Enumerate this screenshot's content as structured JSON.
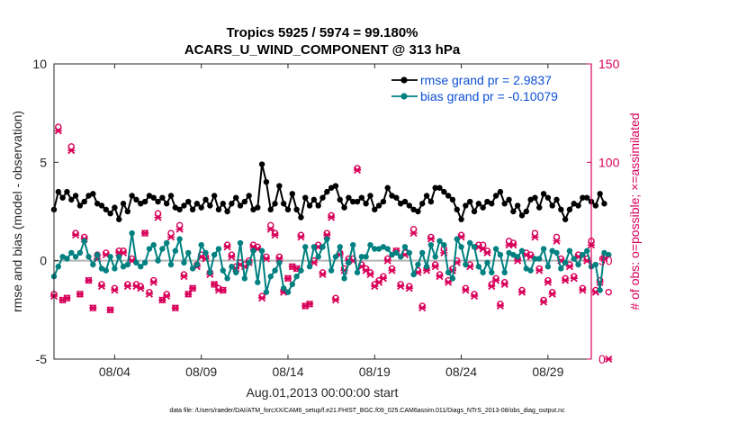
{
  "chart_data": {
    "type": "line",
    "title_line1": "Tropics 5925 / 5974 = 99.180%",
    "title_line2": "ACARS_U_WIND_COMPONENT @ 313 hPa",
    "ylabel_left": "rmse and bias (model - observation)",
    "ylabel_right": "# of obs: o=possible; ×=assimilated",
    "xlabel": "Aug.01,2013 00:00:00 start",
    "footnote": "data file: /Users/raeder/DAI/ATM_forcXX/CAM6_setup/f.e21.FHIST_BGC.f09_025.CAM6assim.011/Diags_NTrS_2013-08/obs_diag_output.nc",
    "ylim_left": [
      -5,
      10
    ],
    "ylim_right": [
      0,
      150
    ],
    "xlim": [
      0.5,
      31.5
    ],
    "yticks_left": [
      "-5",
      "0",
      "5",
      "10"
    ],
    "yticks_right": [
      "0",
      "50",
      "100",
      "150"
    ],
    "xticks": [
      {
        "day": 4,
        "label": "08/04"
      },
      {
        "day": 9,
        "label": "08/09"
      },
      {
        "day": 14,
        "label": "08/14"
      },
      {
        "day": 19,
        "label": "08/19"
      },
      {
        "day": 24,
        "label": "08/24"
      },
      {
        "day": 29,
        "label": "08/29"
      }
    ],
    "grid": false,
    "legend_position": "top-right",
    "colors": {
      "rmse": "#000000",
      "bias": "#008080",
      "obs": "#d8005a",
      "zero_line": "#b3b3b3",
      "right_axis": "#d8005a",
      "legend_text": "#0b4fd6"
    },
    "series": [
      {
        "name": "rmse grand pr = 2.9837",
        "key": "rmse",
        "x_start": 0.5,
        "x_step": 0.25,
        "values": [
          2.6,
          3.5,
          3.2,
          3.5,
          3.1,
          3.3,
          2.8,
          3.0,
          3.3,
          3.4,
          2.9,
          2.8,
          2.6,
          2.4,
          2.7,
          2.1,
          2.9,
          2.5,
          3.3,
          3.1,
          2.9,
          3.0,
          3.3,
          3.2,
          3.0,
          3.2,
          2.9,
          3.3,
          2.7,
          2.6,
          2.8,
          3.0,
          2.6,
          2.9,
          2.7,
          3.1,
          2.8,
          3.3,
          2.6,
          2.9,
          2.5,
          2.9,
          3.2,
          2.8,
          3.0,
          3.3,
          2.6,
          2.7,
          4.9,
          4.0,
          2.6,
          2.9,
          3.8,
          2.9,
          2.6,
          3.4,
          2.6,
          2.2,
          3.2,
          2.8,
          3.1,
          2.8,
          3.2,
          3.5,
          3.7,
          3.8,
          3.1,
          2.7,
          3.2,
          3.0,
          3.0,
          3.2,
          2.9,
          3.3,
          2.6,
          2.8,
          3.0,
          3.7,
          3.3,
          3.2,
          2.9,
          3.0,
          2.8,
          2.6,
          2.5,
          2.9,
          3.3,
          3.0,
          3.7,
          3.7,
          3.5,
          3.3,
          3.1,
          2.6,
          2.1,
          2.8,
          3.0,
          2.5,
          2.9,
          2.7,
          3.0,
          2.9,
          3.3,
          3.5,
          2.9,
          3.1,
          2.5,
          2.8,
          2.3,
          2.5,
          3.1,
          3.2,
          2.7,
          3.4,
          3.2,
          2.8,
          3.1,
          2.6,
          2.1,
          2.6,
          2.9,
          2.8,
          3.2,
          3.2,
          3.0,
          2.8,
          3.4,
          2.9
        ]
      },
      {
        "name": "bias grand pr = -0.10079",
        "key": "bias",
        "x_start": 0.5,
        "x_step": 0.25,
        "values": [
          -0.8,
          -0.3,
          0.2,
          0.1,
          0.4,
          0.2,
          0.4,
          1.0,
          0.2,
          -0.2,
          0.3,
          -0.4,
          -0.5,
          0.2,
          -0.4,
          0.2,
          -0.3,
          -0.2,
          1.4,
          -0.1,
          -0.3,
          -0.1,
          0.6,
          0.8,
          0.0,
          0.6,
          0.9,
          -0.2,
          0.5,
          1.1,
          -0.1,
          0.4,
          -0.4,
          -0.2,
          0.8,
          0.4,
          -0.6,
          0.3,
          0.6,
          -0.5,
          -0.9,
          -0.3,
          -0.6,
          0.9,
          -0.9,
          -0.1,
          0.5,
          -1.1,
          0.5,
          -1.6,
          -0.8,
          -0.5,
          -0.1,
          -1.4,
          -1.6,
          -1.2,
          -0.8,
          -0.5,
          0.7,
          -0.3,
          0.7,
          0.2,
          0.7,
          1.1,
          -0.5,
          0.2,
          0.7,
          -0.9,
          -0.1,
          0.8,
          -0.6,
          0.2,
          0.2,
          0.8,
          0.6,
          0.6,
          0.7,
          0.6,
          0.3,
          0.4,
          0.2,
          0.7,
          0.4,
          -0.7,
          -0.2,
          0.4,
          -0.3,
          0.8,
          0.2,
          1.0,
          0.8,
          -0.6,
          -0.9,
          1.1,
          0.7,
          -0.2,
          0.9,
          0.7,
          -0.3,
          -0.6,
          -0.1,
          -0.6,
          0.6,
          0.3,
          -0.6,
          0.4,
          0.3,
          0.2,
          0.5,
          -0.4,
          -0.5,
          0.1,
          0.1,
          0.6,
          -0.3,
          0.5,
          0.4,
          -0.4,
          -0.1,
          0.5,
          0.1,
          -0.2,
          0.3,
          0.5,
          -0.3,
          -0.2,
          -1.5,
          0.4,
          0.3
        ]
      },
      {
        "name": "possible obs",
        "key": "possible",
        "x_start": 0.5,
        "x_step": 0.25,
        "values": [
          33,
          118,
          30,
          31,
          108,
          64,
          33,
          62,
          40,
          26,
          53,
          38,
          54,
          25,
          36,
          55,
          55,
          38,
          51,
          38,
          37,
          64,
          34,
          40,
          74,
          30,
          33,
          64,
          26,
          68,
          43,
          33,
          36,
          48,
          53,
          52,
          44,
          38,
          36,
          35,
          58,
          53,
          47,
          49,
          48,
          50,
          58,
          57,
          32,
          52,
          68,
          64,
          52,
          35,
          41,
          47,
          46,
          63,
          27,
          28,
          50,
          58,
          44,
          64,
          73,
          31,
          54,
          46,
          51,
          51,
          97,
          48,
          46,
          44,
          38,
          40,
          42,
          51,
          46,
          55,
          38,
          54,
          37,
          66,
          45,
          27,
          46,
          62,
          48,
          43,
          56,
          40,
          46,
          50,
          63,
          36,
          48,
          33,
          58,
          58,
          55,
          38,
          41,
          28,
          39,
          60,
          59,
          51,
          35,
          54,
          53,
          64,
          46,
          30,
          40,
          34,
          62,
          51,
          41,
          48,
          42,
          53,
          36,
          51,
          60,
          35,
          40,
          52,
          34
        ]
      },
      {
        "name": "assimilated obs",
        "key": "assimilated",
        "x_start": 0.5,
        "x_step": 0.25,
        "values": [
          32,
          116,
          30,
          31,
          106,
          63,
          33,
          61,
          40,
          26,
          51,
          37,
          53,
          25,
          35,
          54,
          54,
          37,
          50,
          37,
          36,
          64,
          33,
          39,
          72,
          30,
          32,
          62,
          26,
          66,
          42,
          33,
          36,
          47,
          52,
          51,
          43,
          38,
          35,
          35,
          57,
          52,
          46,
          48,
          47,
          49,
          57,
          56,
          31,
          51,
          66,
          63,
          51,
          34,
          41,
          47,
          46,
          62,
          27,
          28,
          49,
          57,
          43,
          63,
          72,
          30,
          53,
          45,
          50,
          50,
          96,
          47,
          45,
          43,
          37,
          39,
          41,
          50,
          45,
          55,
          37,
          53,
          36,
          64,
          44,
          26,
          45,
          61,
          47,
          42,
          54,
          39,
          45,
          49,
          62,
          35,
          47,
          32,
          57,
          56,
          54,
          37,
          40,
          27,
          38,
          58,
          58,
          50,
          34,
          53,
          52,
          62,
          45,
          29,
          39,
          33,
          60,
          50,
          40,
          47,
          41,
          52,
          35,
          50,
          58,
          34,
          39,
          51,
          0
        ]
      }
    ]
  }
}
